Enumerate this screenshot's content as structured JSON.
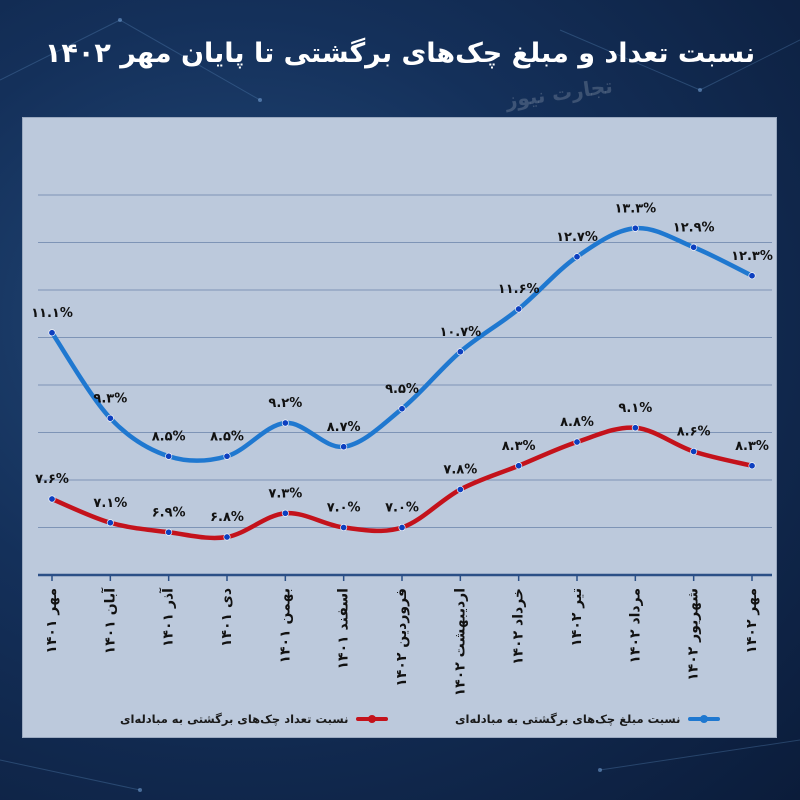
{
  "title": "نسبت تعداد و مبلغ چک‌های برگشتی تا پایان مهر ۱۴۰۲",
  "watermark": "تجارت نیوز",
  "colors": {
    "blue": "#1f78d0",
    "red": "#c4121b",
    "panel": "#bcc9dc"
  },
  "chart_data": {
    "type": "line",
    "categories": [
      "مهر ۱۴۰۱",
      "آبان ۱۴۰۱",
      "آذر ۱۴۰۱",
      "دی ۱۴۰۱",
      "بهمن ۱۴۰۱",
      "اسفند ۱۴۰۱",
      "فروردین ۱۴۰۲",
      "اردیبهشت ۱۴۰۲",
      "خرداد ۱۴۰۲",
      "تیر ۱۴۰۲",
      "مرداد ۱۴۰۲",
      "شهریور ۱۴۰۲",
      "مهر ۱۴۰۲"
    ],
    "series": [
      {
        "name": "نسبت مبلغ چک‌های برگشتی به مبادله‌ای",
        "color": "#1f78d0",
        "values": [
          11.1,
          9.3,
          8.5,
          8.5,
          9.2,
          8.7,
          9.5,
          10.7,
          11.6,
          12.7,
          13.3,
          12.9,
          12.3
        ],
        "labels": [
          "۱۱.۱%",
          "۹.۳%",
          "۸.۵%",
          "۸.۵%",
          "۹.۲%",
          "۸.۷%",
          "۹.۵%",
          "۱۰.۷%",
          "۱۱.۶%",
          "۱۲.۷%",
          "۱۳.۳%",
          "۱۲.۹%",
          "۱۲.۳%"
        ]
      },
      {
        "name": "نسبت تعداد چک‌های برگشتی به مبادله‌ای",
        "color": "#c4121b",
        "values": [
          7.6,
          7.1,
          6.9,
          6.8,
          7.3,
          7.0,
          7.0,
          7.8,
          8.3,
          8.8,
          9.1,
          8.6,
          8.3
        ],
        "labels": [
          "۷.۶%",
          "۷.۱%",
          "۶.۹%",
          "۶.۸%",
          "۷.۳%",
          "۷.۰%",
          "۷.۰%",
          "۷.۸%",
          "۸.۳%",
          "۸.۸%",
          "۹.۱%",
          "۸.۶%",
          "۸.۳%"
        ]
      }
    ],
    "ylim": [
      6.0,
      14.0
    ],
    "grid": true,
    "legend_position": "bottom"
  }
}
